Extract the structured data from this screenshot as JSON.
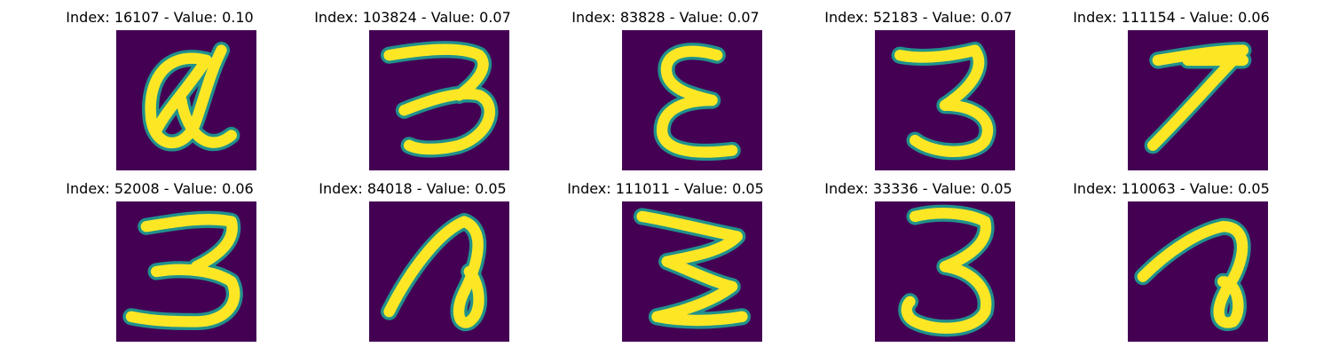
{
  "panels": [
    {
      "title": "Index: 16107 - Value: 0.10",
      "glyph": "a-loop"
    },
    {
      "title": "Index: 103824 - Value: 0.07",
      "glyph": "three"
    },
    {
      "title": "Index: 83828 - Value: 0.07",
      "glyph": "epsilon"
    },
    {
      "title": "Index: 52183 - Value: 0.07",
      "glyph": "three"
    },
    {
      "title": "Index: 111154 - Value: 0.06",
      "glyph": "seven"
    },
    {
      "title": "Index: 52008 - Value: 0.06",
      "glyph": "three"
    },
    {
      "title": "Index: 84018 - Value: 0.05",
      "glyph": "a-loop"
    },
    {
      "title": "Index: 111011 - Value: 0.05",
      "glyph": "three"
    },
    {
      "title": "Index: 33336 - Value: 0.05",
      "glyph": "three"
    },
    {
      "title": "Index: 110063 - Value: 0.05",
      "glyph": "a-loop"
    }
  ],
  "colors": {
    "background": "#440154",
    "stroke_outer": "#21918c",
    "stroke_inner": "#fde725",
    "page": "#ffffff"
  }
}
